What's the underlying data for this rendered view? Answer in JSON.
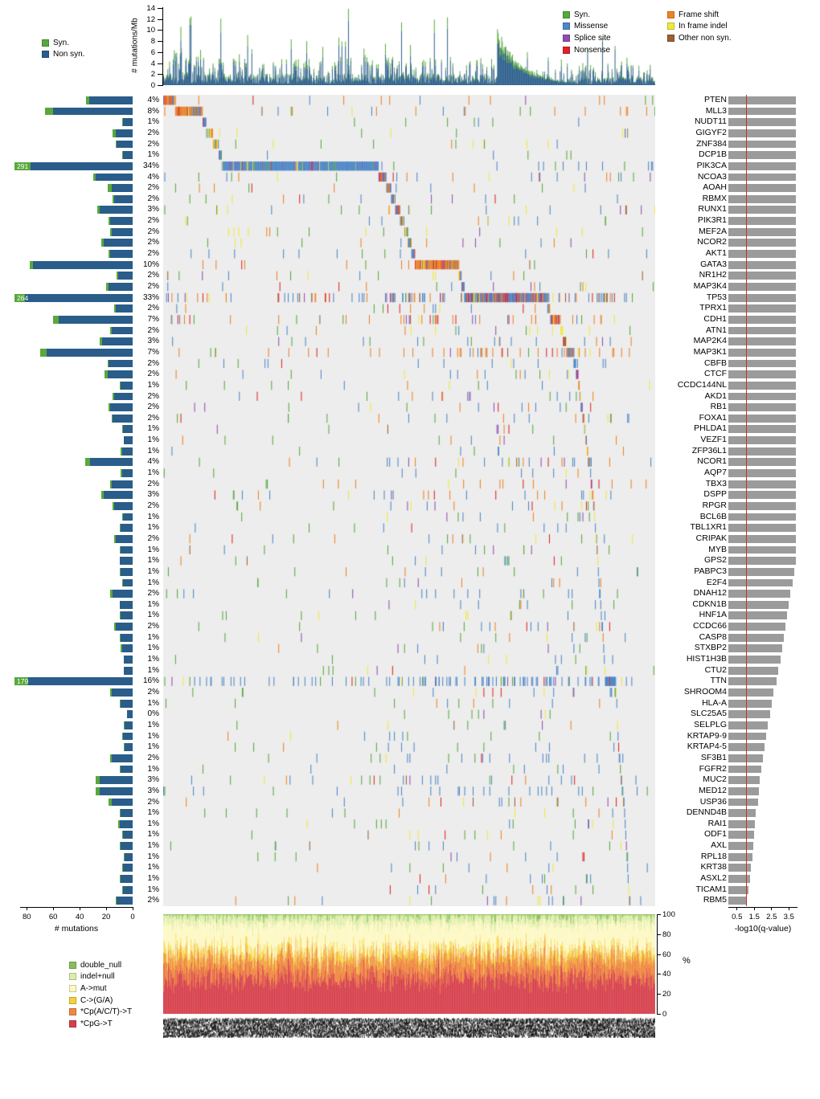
{
  "top_chart": {
    "ylabel": "# mutations/Mb",
    "yticks": [
      0,
      2,
      4,
      6,
      8,
      10,
      12,
      14
    ],
    "ymax": 14,
    "legend": [
      {
        "label": "Syn.",
        "color": "#58a83c"
      },
      {
        "label": "Non syn.",
        "color": "#2a5d8a"
      }
    ]
  },
  "mutation_type_legend": {
    "col1": [
      {
        "label": "Syn.",
        "color": "#58a83c"
      },
      {
        "label": "Missense",
        "color": "#4d87c7"
      },
      {
        "label": "Splice site",
        "color": "#8f4fae"
      },
      {
        "label": "Nonsense",
        "color": "#e02228"
      }
    ],
    "col2": [
      {
        "label": "Frame shift",
        "color": "#f08224"
      },
      {
        "label": "In frame indel",
        "color": "#efe93c"
      },
      {
        "label": "Other non syn.",
        "color": "#9a5f35"
      }
    ]
  },
  "left_chart": {
    "xlabel": "# mutations",
    "xticks": [
      80,
      60,
      40,
      20,
      0
    ]
  },
  "qvalue_chart": {
    "xlabel": "-log10(q-value)",
    "xticks": [
      0.5,
      1.5,
      2.5,
      3.5
    ],
    "xmax": 4,
    "significance_line": 1.0,
    "bar_color": "#9b9b9b",
    "line_color": "#c4302e"
  },
  "spectrum_chart": {
    "ylabel": "%",
    "yticks": [
      100,
      80,
      60,
      40,
      20,
      0
    ],
    "legend": [
      {
        "label": "double_null",
        "color": "#8abf58"
      },
      {
        "label": "indel+null",
        "color": "#dcedaa"
      },
      {
        "label": "A->mut",
        "color": "#fdf8c4"
      },
      {
        "label": "C->(G/A)",
        "color": "#f4d23e"
      },
      {
        "label": "*Cp(A/C/T)->T",
        "color": "#f0883f"
      },
      {
        "label": "*CpG->T",
        "color": "#d63f4b"
      }
    ]
  },
  "chart_data": {
    "type": "heatmap",
    "description": "Mutation landscape (comut) plot: per-sample mutation rate (top), gene x sample mutation matrix (center), mutation counts per gene (left bars), mutated-sample percentage per gene, -log10(q-value) significance bars with red q=0.1 line (right), and per-sample mutation spectrum (bottom).",
    "n_samples": 825,
    "left_axis_max": 85,
    "rate_colors": {
      "syn": "#58a83c",
      "nonsyn": "#2a5d8a"
    },
    "type_colors": {
      "syn": "#58a83c",
      "missense": "#4d87c7",
      "splice": "#8f4fae",
      "nonsense": "#e02228",
      "frameshift": "#f08224",
      "inframe": "#efe93c",
      "other": "#9a5f35"
    },
    "mixes": {
      "ms": {
        "missense": 0.88,
        "inframe": 0.04,
        "splice": 0.03,
        "nonsense": 0.02,
        "syn": 0.03
      },
      "fs": {
        "frameshift": 0.62,
        "missense": 0.12,
        "nonsense": 0.08,
        "splice": 0.07,
        "inframe": 0.06,
        "other": 0.05
      },
      "if": {
        "inframe": 0.66,
        "missense": 0.12,
        "frameshift": 0.12,
        "syn": 0.05,
        "splice": 0.05
      },
      "mx": {
        "missense": 0.42,
        "frameshift": 0.2,
        "inframe": 0.12,
        "splice": 0.1,
        "nonsense": 0.08,
        "syn": 0.05,
        "other": 0.03
      },
      "tp": {
        "missense": 0.46,
        "frameshift": 0.22,
        "nonsense": 0.12,
        "splice": 0.12,
        "inframe": 0.05,
        "other": 0.03
      }
    },
    "genes": [
      {
        "name": "PTEN",
        "pct": "4%",
        "p": 4,
        "mut": 35,
        "syn": 2,
        "q": 3.9,
        "band": 2.5,
        "mix": "fs"
      },
      {
        "name": "MLL3",
        "pct": "8%",
        "p": 8,
        "mut": 66,
        "syn": 6,
        "q": 3.9,
        "band": 5.5,
        "mix": "fs"
      },
      {
        "name": "NUDT11",
        "pct": "1%",
        "p": 1,
        "mut": 8,
        "syn": 1,
        "q": 3.9,
        "band": 0.7,
        "mix": "mx"
      },
      {
        "name": "GIGYF2",
        "pct": "2%",
        "p": 2,
        "mut": 15,
        "syn": 2,
        "q": 3.9,
        "band": 1.3,
        "mix": "if"
      },
      {
        "name": "ZNF384",
        "pct": "2%",
        "p": 2,
        "mut": 13,
        "syn": 1,
        "q": 3.9,
        "band": 1.2,
        "mix": "if"
      },
      {
        "name": "DCP1B",
        "pct": "1%",
        "p": 1,
        "mut": 8,
        "syn": 1,
        "q": 3.9,
        "band": 0.6,
        "mix": "mx"
      },
      {
        "name": "PIK3CA",
        "pct": "34%",
        "p": 34,
        "mut": 291,
        "syn": 12,
        "q": 3.9,
        "band": 31.9,
        "mix": "ms",
        "flag": "291"
      },
      {
        "name": "NCOA3",
        "pct": "4%",
        "p": 4,
        "mut": 30,
        "syn": 2,
        "q": 3.9,
        "band": 1.6,
        "mix": "mx"
      },
      {
        "name": "AOAH",
        "pct": "2%",
        "p": 2,
        "mut": 19,
        "syn": 3,
        "q": 3.9,
        "band": 1.0,
        "mix": "mx"
      },
      {
        "name": "RBMX",
        "pct": "2%",
        "p": 2,
        "mut": 15,
        "syn": 1,
        "q": 3.9,
        "band": 0.8,
        "mix": "mx"
      },
      {
        "name": "RUNX1",
        "pct": "3%",
        "p": 3,
        "mut": 27,
        "syn": 2,
        "q": 3.9,
        "band": 1.0,
        "mix": "mx"
      },
      {
        "name": "PIK3R1",
        "pct": "2%",
        "p": 2,
        "mut": 18,
        "syn": 1,
        "q": 3.9,
        "band": 0.8,
        "mix": "mx"
      },
      {
        "name": "MEF2A",
        "pct": "2%",
        "p": 2,
        "mut": 17,
        "syn": 1,
        "q": 3.9,
        "band": 0.7,
        "mix": "if"
      },
      {
        "name": "NCOR2",
        "pct": "2%",
        "p": 2,
        "mut": 24,
        "syn": 2,
        "q": 3.9,
        "band": 0.7,
        "mix": "mx"
      },
      {
        "name": "AKT1",
        "pct": "2%",
        "p": 2,
        "mut": 18,
        "syn": 1,
        "q": 3.9,
        "band": 0.7,
        "mix": "ms"
      },
      {
        "name": "GATA3",
        "pct": "10%",
        "p": 10,
        "mut": 78,
        "syn": 3,
        "q": 3.9,
        "band": 9.0,
        "mix": "fs"
      },
      {
        "name": "NR1H2",
        "pct": "2%",
        "p": 2,
        "mut": 12,
        "syn": 1,
        "q": 3.9,
        "band": 0.5,
        "mix": "mx"
      },
      {
        "name": "MAP3K4",
        "pct": "2%",
        "p": 2,
        "mut": 20,
        "syn": 2,
        "q": 3.9,
        "band": 0.6,
        "mix": "mx"
      },
      {
        "name": "TP53",
        "pct": "33%",
        "p": 33,
        "mut": 264,
        "syn": 8,
        "q": 3.9,
        "band": 17.0,
        "mix": "tp",
        "flag": "264"
      },
      {
        "name": "TPRX1",
        "pct": "2%",
        "p": 2,
        "mut": 14,
        "syn": 1,
        "q": 3.9,
        "band": 0.5,
        "mix": "mx"
      },
      {
        "name": "CDH1",
        "pct": "7%",
        "p": 7,
        "mut": 60,
        "syn": 4,
        "q": 3.9,
        "band": 2.0,
        "mix": "fs"
      },
      {
        "name": "ATN1",
        "pct": "2%",
        "p": 2,
        "mut": 17,
        "syn": 1,
        "q": 3.9,
        "band": 0.5,
        "mix": "if"
      },
      {
        "name": "MAP2K4",
        "pct": "3%",
        "p": 3,
        "mut": 25,
        "syn": 2,
        "q": 3.9,
        "band": 0.7,
        "mix": "mx"
      },
      {
        "name": "MAP3K1",
        "pct": "7%",
        "p": 7,
        "mut": 70,
        "syn": 5,
        "q": 3.9,
        "band": 1.5,
        "mix": "fs"
      },
      {
        "name": "CBFB",
        "pct": "2%",
        "p": 2,
        "mut": 19,
        "syn": 1,
        "q": 3.9,
        "band": 0.5,
        "mix": "ms"
      },
      {
        "name": "CTCF",
        "pct": "2%",
        "p": 2,
        "mut": 21,
        "syn": 2,
        "q": 3.9,
        "band": 0.5,
        "mix": "mx"
      },
      {
        "name": "CCDC144NL",
        "pct": "1%",
        "p": 1,
        "mut": 10,
        "syn": 1,
        "q": 3.9,
        "band": 0.25,
        "mix": "mx"
      },
      {
        "name": "AKD1",
        "pct": "2%",
        "p": 2,
        "mut": 15,
        "syn": 1,
        "q": 3.9,
        "band": 0.3,
        "mix": "mx"
      },
      {
        "name": "RB1",
        "pct": "2%",
        "p": 2,
        "mut": 18,
        "syn": 1,
        "q": 3.9,
        "band": 0.4,
        "mix": "mx"
      },
      {
        "name": "FOXA1",
        "pct": "2%",
        "p": 2,
        "mut": 16,
        "syn": 1,
        "q": 3.9,
        "band": 0.4,
        "mix": "mx"
      },
      {
        "name": "PHLDA1",
        "pct": "1%",
        "p": 1,
        "mut": 8,
        "syn": 1,
        "q": 3.9,
        "band": 0.2,
        "mix": "mx"
      },
      {
        "name": "VEZF1",
        "pct": "1%",
        "p": 1,
        "mut": 7,
        "syn": 0,
        "q": 3.9,
        "band": 0.2,
        "mix": "mx"
      },
      {
        "name": "ZFP36L1",
        "pct": "1%",
        "p": 1,
        "mut": 9,
        "syn": 1,
        "q": 3.9,
        "band": 0.2,
        "mix": "mx"
      },
      {
        "name": "NCOR1",
        "pct": "4%",
        "p": 4,
        "mut": 36,
        "syn": 4,
        "q": 3.9,
        "band": 0.5,
        "mix": "mx"
      },
      {
        "name": "AQP7",
        "pct": "1%",
        "p": 1,
        "mut": 9,
        "syn": 1,
        "q": 3.9,
        "band": 0.15,
        "mix": "mx"
      },
      {
        "name": "TBX3",
        "pct": "2%",
        "p": 2,
        "mut": 17,
        "syn": 1,
        "q": 3.9,
        "band": 0.3,
        "mix": "fs"
      },
      {
        "name": "DSPP",
        "pct": "3%",
        "p": 3,
        "mut": 24,
        "syn": 2,
        "q": 3.9,
        "band": 0.3,
        "mix": "mx"
      },
      {
        "name": "RPGR",
        "pct": "2%",
        "p": 2,
        "mut": 15,
        "syn": 1,
        "q": 3.9,
        "band": 0.2,
        "mix": "mx"
      },
      {
        "name": "BCL6B",
        "pct": "1%",
        "p": 1,
        "mut": 8,
        "syn": 1,
        "q": 3.9,
        "band": 0.15,
        "mix": "mx"
      },
      {
        "name": "TBL1XR1",
        "pct": "1%",
        "p": 1,
        "mut": 10,
        "syn": 1,
        "q": 3.9,
        "band": 0.15,
        "mix": "ms"
      },
      {
        "name": "CRIPAK",
        "pct": "2%",
        "p": 2,
        "mut": 14,
        "syn": 1,
        "q": 3.9,
        "band": 0.2,
        "mix": "mx"
      },
      {
        "name": "MYB",
        "pct": "1%",
        "p": 1,
        "mut": 10,
        "syn": 1,
        "q": 3.9,
        "band": 0.15,
        "mix": "mx"
      },
      {
        "name": "GPS2",
        "pct": "1%",
        "p": 1,
        "mut": 10,
        "syn": 0,
        "q": 3.9,
        "band": 0.15,
        "mix": "mx"
      },
      {
        "name": "PABPC3",
        "pct": "1%",
        "p": 1,
        "mut": 10,
        "syn": 1,
        "q": 3.8,
        "band": 0.15,
        "mix": "mx"
      },
      {
        "name": "E2F4",
        "pct": "1%",
        "p": 1,
        "mut": 8,
        "syn": 1,
        "q": 3.7,
        "band": 0.15,
        "mix": "mx"
      },
      {
        "name": "DNAH12",
        "pct": "2%",
        "p": 2,
        "mut": 17,
        "syn": 2,
        "q": 3.6,
        "band": 0.2,
        "mix": "ms"
      },
      {
        "name": "CDKN1B",
        "pct": "1%",
        "p": 1,
        "mut": 10,
        "syn": 0,
        "q": 3.5,
        "band": 0.15,
        "mix": "mx"
      },
      {
        "name": "HNF1A",
        "pct": "1%",
        "p": 1,
        "mut": 10,
        "syn": 1,
        "q": 3.4,
        "band": 0.15,
        "mix": "mx"
      },
      {
        "name": "CCDC66",
        "pct": "2%",
        "p": 2,
        "mut": 14,
        "syn": 1,
        "q": 3.3,
        "band": 0.2,
        "mix": "mx"
      },
      {
        "name": "CASP8",
        "pct": "1%",
        "p": 1,
        "mut": 10,
        "syn": 1,
        "q": 3.2,
        "band": 0.15,
        "mix": "mx"
      },
      {
        "name": "STXBP2",
        "pct": "1%",
        "p": 1,
        "mut": 9,
        "syn": 1,
        "q": 3.1,
        "band": 0.15,
        "mix": "mx"
      },
      {
        "name": "HIST1H3B",
        "pct": "1%",
        "p": 1,
        "mut": 7,
        "syn": 0,
        "q": 3.0,
        "band": 0.1,
        "mix": "ms"
      },
      {
        "name": "CTU2",
        "pct": "1%",
        "p": 1,
        "mut": 7,
        "syn": 0,
        "q": 2.9,
        "band": 0.1,
        "mix": "mx"
      },
      {
        "name": "TTN",
        "pct": "16%",
        "p": 16,
        "mut": 179,
        "syn": 10,
        "q": 2.8,
        "band": 2.0,
        "mix": "ms",
        "flag": "179"
      },
      {
        "name": "SHROOM4",
        "pct": "2%",
        "p": 2,
        "mut": 17,
        "syn": 1,
        "q": 2.6,
        "band": 0.3,
        "mix": "mx"
      },
      {
        "name": "HLA-A",
        "pct": "1%",
        "p": 1,
        "mut": 10,
        "syn": 1,
        "q": 2.5,
        "band": 0.15,
        "mix": "mx"
      },
      {
        "name": "SLC25A5",
        "pct": "0%",
        "p": 0.4,
        "mut": 4,
        "syn": 0,
        "q": 2.4,
        "band": 0.05,
        "mix": "mx"
      },
      {
        "name": "SELPLG",
        "pct": "1%",
        "p": 1,
        "mut": 7,
        "syn": 1,
        "q": 2.3,
        "band": 0.1,
        "mix": "mx"
      },
      {
        "name": "KRTAP9-9",
        "pct": "1%",
        "p": 1,
        "mut": 8,
        "syn": 1,
        "q": 2.2,
        "band": 0.1,
        "mix": "mx"
      },
      {
        "name": "KRTAP4-5",
        "pct": "1%",
        "p": 1,
        "mut": 7,
        "syn": 1,
        "q": 2.1,
        "band": 0.1,
        "mix": "mx"
      },
      {
        "name": "SF3B1",
        "pct": "2%",
        "p": 2,
        "mut": 17,
        "syn": 1,
        "q": 2.0,
        "band": 0.25,
        "mix": "ms"
      },
      {
        "name": "FGFR2",
        "pct": "1%",
        "p": 1,
        "mut": 10,
        "syn": 1,
        "q": 1.9,
        "band": 0.15,
        "mix": "ms"
      },
      {
        "name": "MUC2",
        "pct": "3%",
        "p": 3,
        "mut": 28,
        "syn": 3,
        "q": 1.8,
        "band": 0.3,
        "mix": "mx"
      },
      {
        "name": "MED12",
        "pct": "3%",
        "p": 3,
        "mut": 28,
        "syn": 3,
        "q": 1.75,
        "band": 0.3,
        "mix": "ms"
      },
      {
        "name": "USP36",
        "pct": "2%",
        "p": 2,
        "mut": 18,
        "syn": 2,
        "q": 1.7,
        "band": 0.25,
        "mix": "mx"
      },
      {
        "name": "DENND4B",
        "pct": "1%",
        "p": 1,
        "mut": 10,
        "syn": 1,
        "q": 1.6,
        "band": 0.15,
        "mix": "mx"
      },
      {
        "name": "RAI1",
        "pct": "1%",
        "p": 1,
        "mut": 11,
        "syn": 1,
        "q": 1.55,
        "band": 0.15,
        "mix": "mx"
      },
      {
        "name": "ODF1",
        "pct": "1%",
        "p": 1,
        "mut": 8,
        "syn": 1,
        "q": 1.5,
        "band": 0.1,
        "mix": "mx"
      },
      {
        "name": "AXL",
        "pct": "1%",
        "p": 1,
        "mut": 10,
        "syn": 1,
        "q": 1.45,
        "band": 0.15,
        "mix": "mx"
      },
      {
        "name": "RPL18",
        "pct": "1%",
        "p": 1,
        "mut": 7,
        "syn": 1,
        "q": 1.4,
        "band": 0.1,
        "mix": "mx"
      },
      {
        "name": "KRT38",
        "pct": "1%",
        "p": 1,
        "mut": 8,
        "syn": 1,
        "q": 1.3,
        "band": 0.1,
        "mix": "mx"
      },
      {
        "name": "ASXL2",
        "pct": "1%",
        "p": 1,
        "mut": 10,
        "syn": 1,
        "q": 1.25,
        "band": 0.15,
        "mix": "mx"
      },
      {
        "name": "TICAM1",
        "pct": "1%",
        "p": 1,
        "mut": 8,
        "syn": 1,
        "q": 1.15,
        "band": 0.1,
        "mix": "mx"
      },
      {
        "name": "RBM5",
        "pct": "2%",
        "p": 2,
        "mut": 13,
        "syn": 1,
        "q": 1.05,
        "band": 0.2,
        "mix": "mx"
      }
    ]
  }
}
